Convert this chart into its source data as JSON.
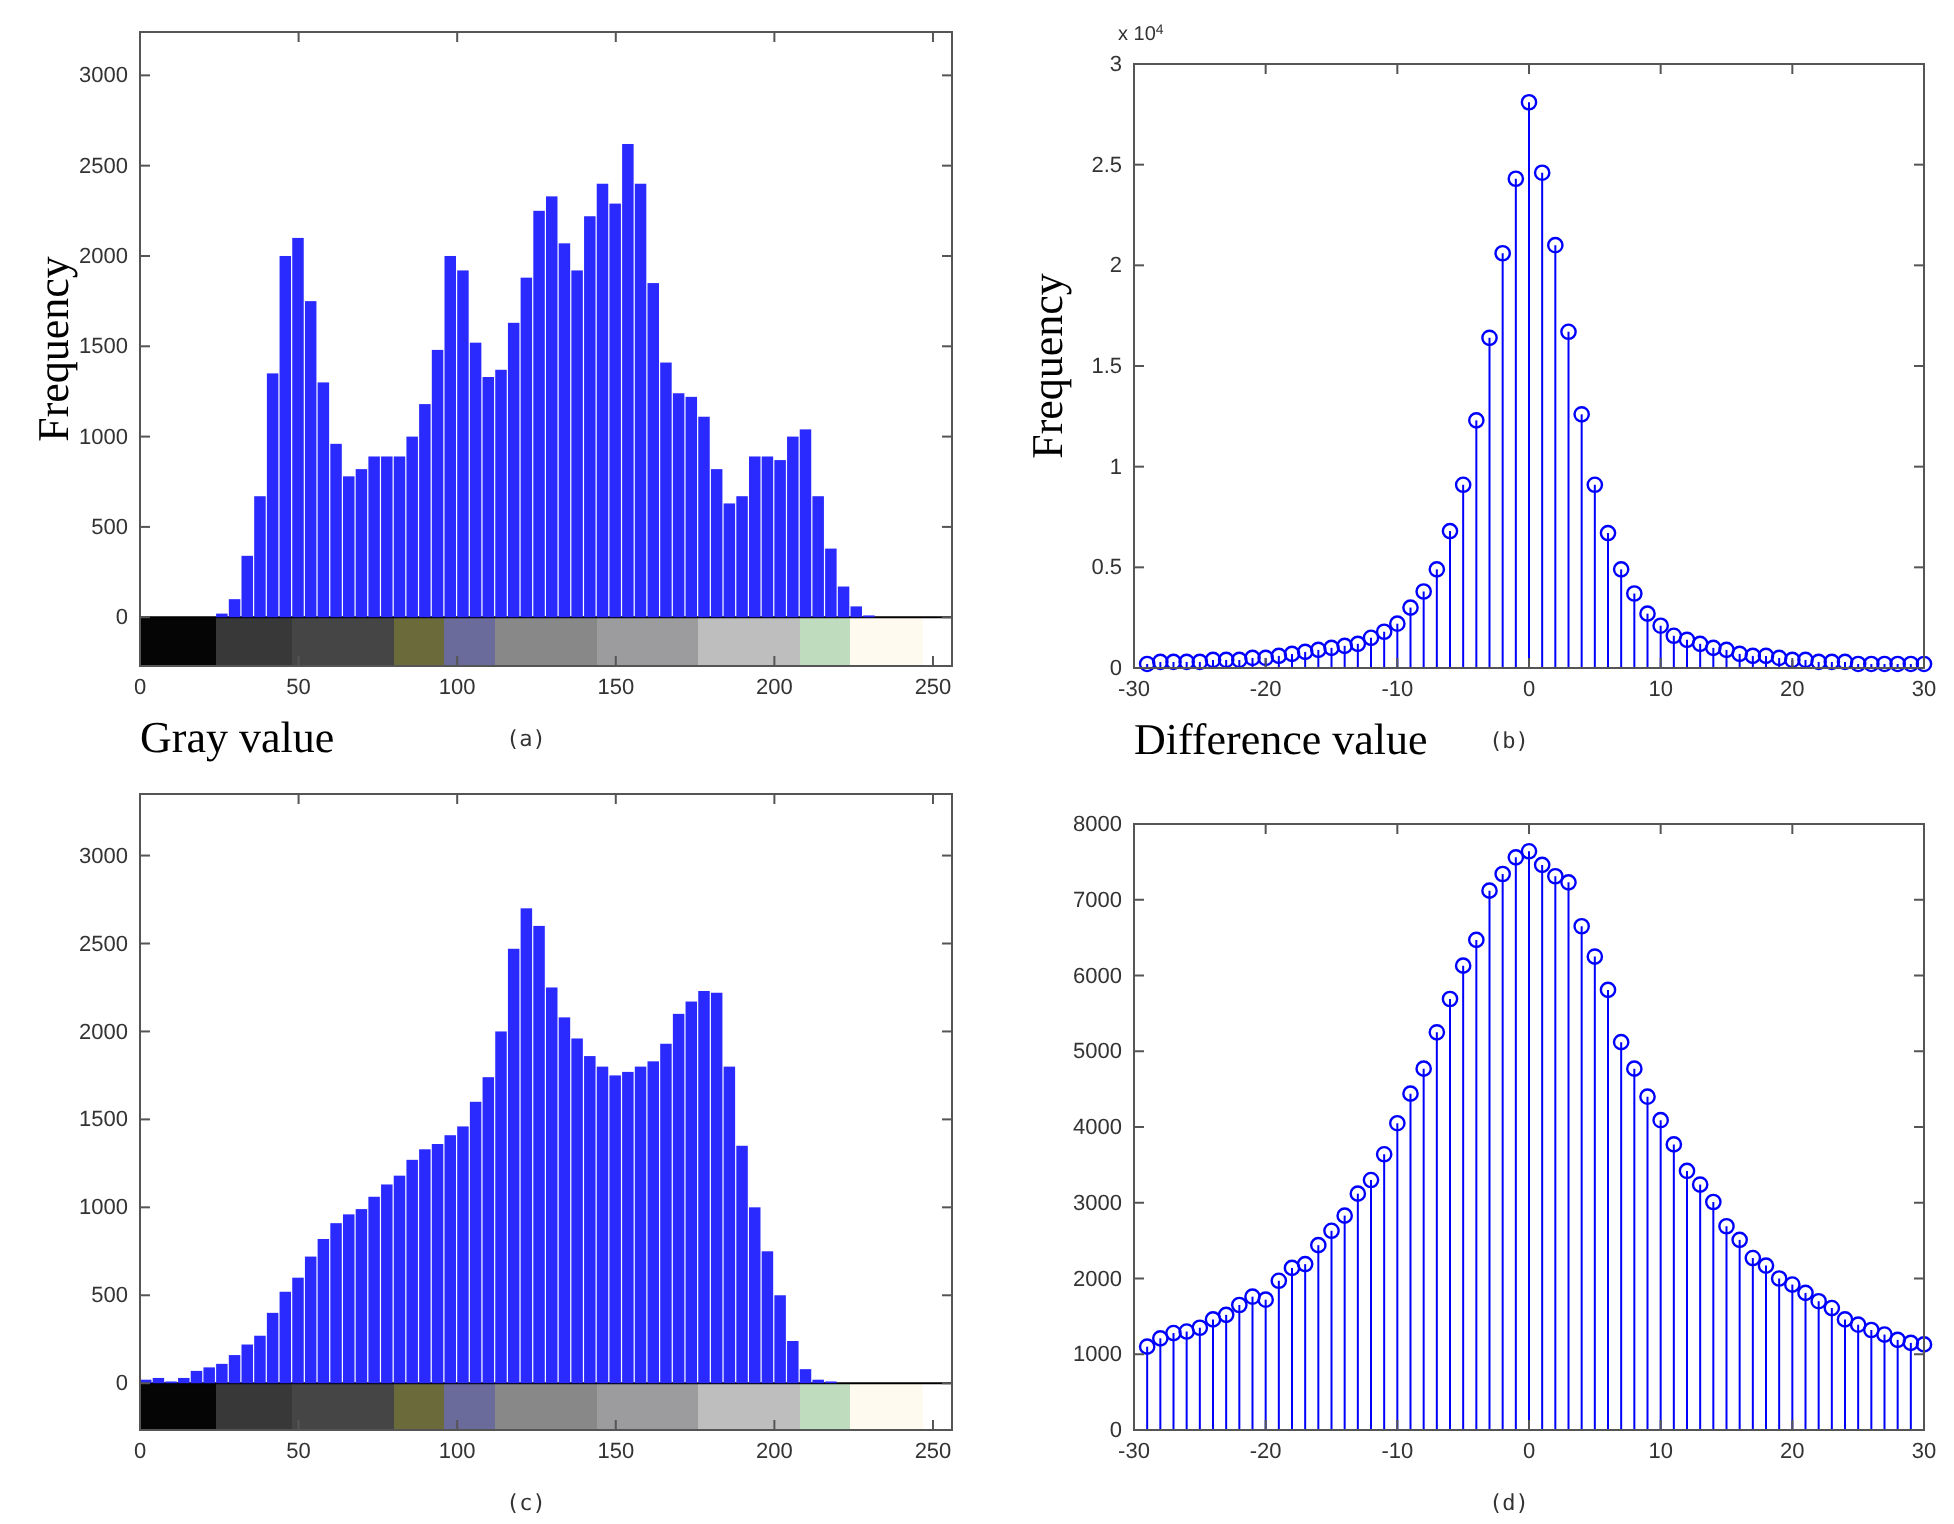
{
  "chart_data": [
    {
      "type": "histogram",
      "xlabel": "Gray value",
      "ylabel": "Frequency",
      "annotations": [
        "(a)"
      ],
      "color": "#2a2aff",
      "bins": [
        0,
        4,
        8,
        12,
        16,
        20,
        24,
        28,
        32,
        36,
        40,
        44,
        48,
        52,
        56,
        60,
        64,
        68,
        72,
        76,
        80,
        84,
        88,
        92,
        96,
        100,
        104,
        108,
        112,
        116,
        120,
        124,
        128,
        132,
        136,
        140,
        144,
        148,
        152,
        156,
        160,
        164,
        168,
        172,
        176,
        180,
        184,
        188,
        192,
        196,
        200,
        204,
        208,
        212,
        216,
        220,
        224,
        228,
        232,
        236,
        240,
        244,
        248,
        252,
        256
      ],
      "values": [
        0,
        0,
        0,
        0,
        0,
        0,
        20,
        100,
        340,
        670,
        1350,
        2000,
        2100,
        1750,
        1300,
        960,
        780,
        820,
        890,
        890,
        890,
        1000,
        1180,
        1480,
        2000,
        1920,
        1520,
        1330,
        1370,
        1630,
        1880,
        2250,
        2330,
        2070,
        1920,
        2220,
        2400,
        2290,
        2620,
        2400,
        1850,
        1410,
        1240,
        1220,
        1110,
        820,
        630,
        670,
        890,
        890,
        870,
        1000,
        1040,
        670,
        380,
        170,
        60,
        10,
        0,
        0,
        0,
        0,
        0,
        0
      ],
      "xlim": [
        0,
        256
      ],
      "ylim": [
        -270,
        3240
      ],
      "xticks": [
        0,
        50,
        100,
        150,
        200,
        250
      ],
      "yticks": [
        0,
        500,
        1000,
        1500,
        2000,
        2500,
        3000
      ]
    },
    {
      "type": "lollipop",
      "xlabel": "Difference value",
      "ylabel": "Frequency",
      "annotations": [
        "x 10$^{4}$",
        "(b)"
      ],
      "color": "#0000ff",
      "marker": "circle",
      "x": [
        -29,
        -28,
        -27,
        -26,
        -25,
        -24,
        -23,
        -22,
        -21,
        -20,
        -19,
        -18,
        -17,
        -16,
        -15,
        -14,
        -13,
        -12,
        -11,
        -10,
        -9,
        -8,
        -7,
        -6,
        -5,
        -4,
        -3,
        -2,
        -1,
        0,
        1,
        2,
        3,
        4,
        5,
        6,
        7,
        8,
        9,
        10,
        11,
        12,
        13,
        14,
        15,
        16,
        17,
        18,
        19,
        20,
        21,
        22,
        23,
        24,
        25,
        26,
        27,
        28,
        29,
        30
      ],
      "values": [
        0.02,
        0.03,
        0.03,
        0.03,
        0.03,
        0.04,
        0.04,
        0.04,
        0.05,
        0.05,
        0.06,
        0.07,
        0.08,
        0.09,
        0.1,
        0.11,
        0.12,
        0.15,
        0.18,
        0.22,
        0.3,
        0.38,
        0.49,
        0.68,
        0.91,
        1.23,
        1.64,
        2.06,
        2.43,
        2.81,
        2.46,
        2.1,
        1.67,
        1.26,
        0.91,
        0.67,
        0.49,
        0.37,
        0.27,
        0.21,
        0.16,
        0.14,
        0.12,
        0.1,
        0.09,
        0.07,
        0.06,
        0.06,
        0.05,
        0.04,
        0.04,
        0.03,
        0.03,
        0.03,
        0.02,
        0.02,
        0.02,
        0.02,
        0.02,
        0.02
      ],
      "xlim": [
        -30,
        30
      ],
      "ylim": [
        0,
        3
      ],
      "xticks": [
        -30,
        -20,
        -10,
        0,
        10,
        20,
        30
      ],
      "yticks": [
        0,
        0.5,
        1,
        1.5,
        2,
        2.5,
        3
      ]
    },
    {
      "type": "histogram",
      "annotations": [
        "(c)"
      ],
      "color": "#2a2aff",
      "bins": [
        0,
        4,
        8,
        12,
        16,
        20,
        24,
        28,
        32,
        36,
        40,
        44,
        48,
        52,
        56,
        60,
        64,
        68,
        72,
        76,
        80,
        84,
        88,
        92,
        96,
        100,
        104,
        108,
        112,
        116,
        120,
        124,
        128,
        132,
        136,
        140,
        144,
        148,
        152,
        156,
        160,
        164,
        168,
        172,
        176,
        180,
        184,
        188,
        192,
        196,
        200,
        204,
        208,
        212,
        216,
        220,
        224,
        228,
        232,
        236,
        240,
        244,
        248,
        252,
        256
      ],
      "values": [
        20,
        30,
        10,
        30,
        70,
        90,
        110,
        160,
        220,
        270,
        400,
        520,
        600,
        720,
        820,
        910,
        960,
        990,
        1060,
        1130,
        1180,
        1270,
        1330,
        1360,
        1410,
        1460,
        1600,
        1740,
        2000,
        2470,
        2700,
        2600,
        2250,
        2080,
        1960,
        1860,
        1800,
        1750,
        1770,
        1800,
        1830,
        1930,
        2100,
        2170,
        2230,
        2220,
        1800,
        1350,
        1000,
        750,
        500,
        240,
        80,
        20,
        10,
        0,
        0,
        0,
        0,
        0,
        0,
        0,
        0,
        0
      ],
      "xlim": [
        0,
        256
      ],
      "ylim": [
        -266,
        3350
      ],
      "xticks": [
        0,
        50,
        100,
        150,
        200,
        250
      ],
      "yticks": [
        0,
        500,
        1000,
        1500,
        2000,
        2500,
        3000
      ]
    },
    {
      "type": "lollipop",
      "annotations": [
        "(d)"
      ],
      "color": "#0000ff",
      "marker": "circle",
      "x": [
        -29,
        -28,
        -27,
        -26,
        -25,
        -24,
        -23,
        -22,
        -21,
        -20,
        -19,
        -18,
        -17,
        -16,
        -15,
        -14,
        -13,
        -12,
        -11,
        -10,
        -9,
        -8,
        -7,
        -6,
        -5,
        -4,
        -3,
        -2,
        -1,
        0,
        1,
        2,
        3,
        4,
        5,
        6,
        7,
        8,
        9,
        10,
        11,
        12,
        13,
        14,
        15,
        16,
        17,
        18,
        19,
        20,
        21,
        22,
        23,
        24,
        25,
        26,
        27,
        28,
        29,
        30
      ],
      "values": [
        1100,
        1210,
        1280,
        1300,
        1350,
        1460,
        1520,
        1650,
        1760,
        1720,
        1970,
        2140,
        2190,
        2440,
        2630,
        2830,
        3120,
        3300,
        3640,
        4050,
        4440,
        4770,
        5250,
        5690,
        6130,
        6470,
        7120,
        7340,
        7560,
        7640,
        7460,
        7310,
        7230,
        6650,
        6250,
        5810,
        5120,
        4770,
        4400,
        4090,
        3770,
        3420,
        3240,
        3010,
        2690,
        2510,
        2270,
        2170,
        2000,
        1920,
        1810,
        1700,
        1610,
        1460,
        1390,
        1320,
        1260,
        1190,
        1150,
        1130
      ],
      "xlim": [
        -30,
        30
      ],
      "ylim": [
        0,
        8000
      ],
      "xticks": [
        -30,
        -20,
        -10,
        0,
        10,
        20,
        30
      ],
      "yticks": [
        0,
        1000,
        2000,
        3000,
        4000,
        5000,
        6000,
        7000,
        8000
      ]
    }
  ]
}
